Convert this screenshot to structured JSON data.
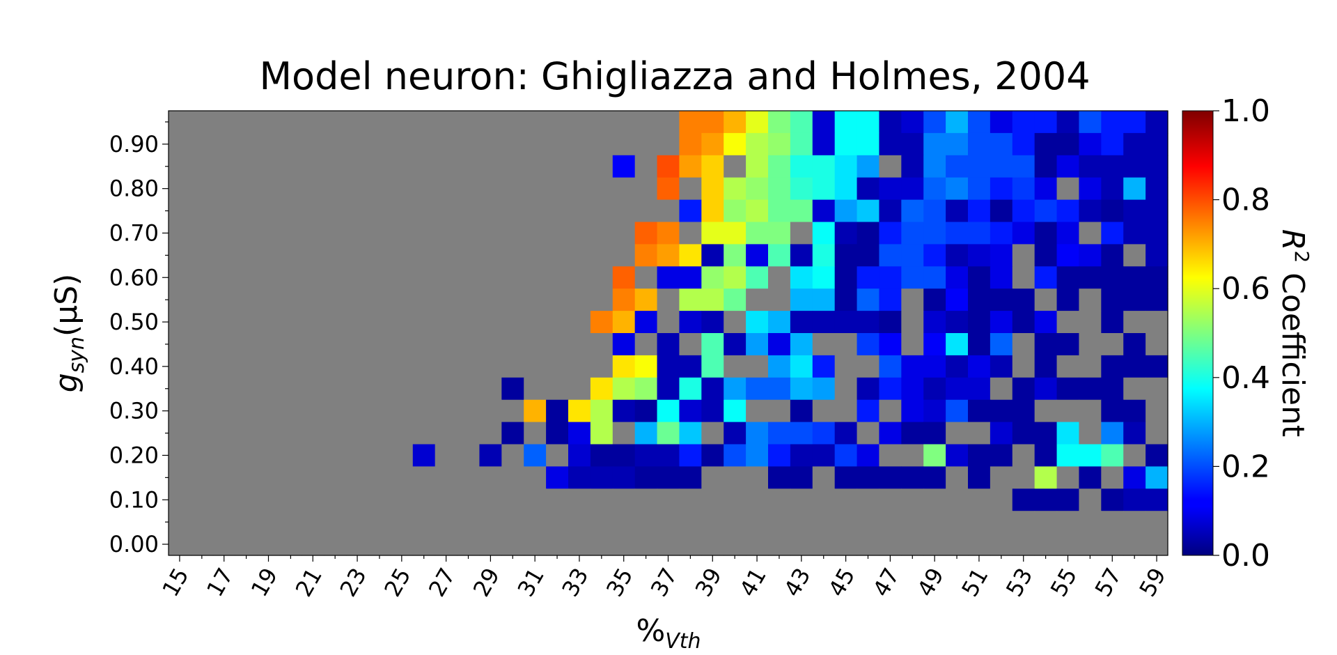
{
  "chart_data": {
    "type": "heatmap",
    "title": "Model neuron: Ghigliazza and Holmes, 2004",
    "xlabel_main": "%",
    "xlabel_sub": "Vth",
    "ylabel_main": "g",
    "ylabel_sub": "syn",
    "ylabel_unit": "(μS)",
    "colorbar_label_base": "R",
    "colorbar_label_sup": "2",
    "colorbar_label_rest": " Coefficient",
    "colormap": "jet",
    "missing_color": "#808080",
    "x_values": [
      15,
      16,
      17,
      18,
      19,
      20,
      21,
      22,
      23,
      24,
      25,
      26,
      27,
      28,
      29,
      30,
      31,
      32,
      33,
      34,
      35,
      36,
      37,
      38,
      39,
      40,
      41,
      42,
      43,
      44,
      45,
      46,
      47,
      48,
      49,
      50,
      51,
      52,
      53,
      54,
      55,
      56,
      57,
      58,
      59
    ],
    "x_tick_labels": [
      "15",
      "17",
      "19",
      "21",
      "23",
      "25",
      "27",
      "29",
      "31",
      "33",
      "35",
      "37",
      "39",
      "41",
      "43",
      "45",
      "47",
      "49",
      "51",
      "53",
      "55",
      "57",
      "59"
    ],
    "y_values": [
      0.0,
      0.05,
      0.1,
      0.15,
      0.2,
      0.25,
      0.3,
      0.35,
      0.4,
      0.45,
      0.5,
      0.55,
      0.6,
      0.65,
      0.7,
      0.75,
      0.8,
      0.85,
      0.9,
      0.95
    ],
    "y_tick_labels": [
      "0.00",
      "0.10",
      "0.20",
      "0.30",
      "0.40",
      "0.50",
      "0.60",
      "0.70",
      "0.80",
      "0.90"
    ],
    "colorbar_range": [
      0.0,
      1.0
    ],
    "colorbar_ticks": [
      "0.0",
      "0.2",
      "0.4",
      "0.6",
      "0.8",
      "1.0"
    ],
    "z_note_rows_top_to_bottom_from_y_0.95_to_0.00_null_is_no_data": "",
    "z": [
      [
        null,
        null,
        null,
        null,
        null,
        null,
        null,
        null,
        null,
        null,
        null,
        null,
        null,
        null,
        null,
        null,
        null,
        null,
        null,
        null,
        null,
        null,
        null,
        0.75,
        0.75,
        0.7,
        0.6,
        0.5,
        0.45,
        0.08,
        0.38,
        0.38,
        0.05,
        0.08,
        0.2,
        0.3,
        0.2,
        0.1,
        0.15,
        0.15,
        0.05,
        0.2,
        0.15,
        0.15,
        0.05
      ],
      [
        null,
        null,
        null,
        null,
        null,
        null,
        null,
        null,
        null,
        null,
        null,
        null,
        null,
        null,
        null,
        null,
        null,
        null,
        null,
        null,
        null,
        null,
        null,
        0.75,
        0.72,
        0.62,
        0.55,
        0.52,
        0.45,
        0.08,
        0.38,
        0.38,
        0.05,
        0.05,
        0.25,
        0.25,
        0.2,
        0.2,
        0.15,
        0.03,
        0.03,
        0.1,
        0.15,
        0.05,
        0.05
      ],
      [
        null,
        null,
        null,
        null,
        null,
        null,
        null,
        null,
        null,
        null,
        null,
        null,
        null,
        null,
        null,
        null,
        null,
        null,
        null,
        null,
        0.12,
        null,
        0.8,
        0.72,
        0.67,
        null,
        0.55,
        0.48,
        0.4,
        0.4,
        0.35,
        0.28,
        null,
        0.05,
        0.25,
        0.2,
        0.2,
        0.2,
        0.2,
        0.03,
        0.1,
        0.05,
        0.05,
        0.05,
        0.05
      ],
      [
        null,
        null,
        null,
        null,
        null,
        null,
        null,
        null,
        null,
        null,
        null,
        null,
        null,
        null,
        null,
        null,
        null,
        null,
        null,
        null,
        null,
        null,
        0.78,
        null,
        0.67,
        0.55,
        0.52,
        0.48,
        0.42,
        0.4,
        0.35,
        0.05,
        0.08,
        0.08,
        0.22,
        0.25,
        0.2,
        0.15,
        0.18,
        0.1,
        null,
        0.1,
        0.05,
        0.3,
        0.05
      ],
      [
        null,
        null,
        null,
        null,
        null,
        null,
        null,
        null,
        null,
        null,
        null,
        null,
        null,
        null,
        null,
        null,
        null,
        null,
        null,
        null,
        null,
        null,
        null,
        0.15,
        0.67,
        0.52,
        0.55,
        0.48,
        0.48,
        0.08,
        0.28,
        0.32,
        0.05,
        0.22,
        0.2,
        0.05,
        0.15,
        0.03,
        0.15,
        0.18,
        0.15,
        0.05,
        0.03,
        0.05,
        0.05
      ],
      [
        null,
        null,
        null,
        null,
        null,
        null,
        null,
        null,
        null,
        null,
        null,
        null,
        null,
        null,
        null,
        null,
        null,
        null,
        null,
        null,
        null,
        0.78,
        0.75,
        null,
        0.6,
        0.6,
        0.5,
        0.5,
        null,
        0.38,
        0.05,
        0.03,
        0.15,
        0.2,
        0.2,
        0.18,
        0.18,
        0.15,
        0.1,
        0.03,
        0.1,
        null,
        0.15,
        0.05,
        0.05
      ],
      [
        null,
        null,
        null,
        null,
        null,
        null,
        null,
        null,
        null,
        null,
        null,
        null,
        null,
        null,
        null,
        null,
        null,
        null,
        null,
        null,
        null,
        0.75,
        0.72,
        0.65,
        0.05,
        0.5,
        0.1,
        0.45,
        0.05,
        0.4,
        0.03,
        0.03,
        0.2,
        0.2,
        0.15,
        0.05,
        0.08,
        0.1,
        null,
        0.03,
        0.12,
        0.1,
        0.03,
        null,
        0.05
      ],
      [
        null,
        null,
        null,
        null,
        null,
        null,
        null,
        null,
        null,
        null,
        null,
        null,
        null,
        null,
        null,
        null,
        null,
        null,
        null,
        null,
        0.78,
        null,
        0.1,
        0.1,
        0.52,
        0.55,
        0.45,
        null,
        0.35,
        0.38,
        0.03,
        0.15,
        0.15,
        0.2,
        0.2,
        0.1,
        0.03,
        0.1,
        null,
        0.15,
        0.03,
        0.03,
        0.03,
        0.03,
        0.03
      ],
      [
        null,
        null,
        null,
        null,
        null,
        null,
        null,
        null,
        null,
        null,
        null,
        null,
        null,
        null,
        null,
        null,
        null,
        null,
        null,
        null,
        0.75,
        0.7,
        null,
        0.55,
        0.55,
        0.48,
        null,
        null,
        0.3,
        0.3,
        0.03,
        0.22,
        0.15,
        null,
        0.03,
        0.12,
        0.03,
        0.03,
        0.03,
        null,
        0.03,
        null,
        0.03,
        0.03,
        0.03
      ],
      [
        null,
        null,
        null,
        null,
        null,
        null,
        null,
        null,
        null,
        null,
        null,
        null,
        null,
        null,
        null,
        null,
        null,
        null,
        null,
        0.75,
        0.7,
        0.1,
        null,
        0.08,
        0.05,
        null,
        0.35,
        0.3,
        0.05,
        0.05,
        0.05,
        0.05,
        0.03,
        null,
        0.08,
        0.05,
        0.03,
        0.1,
        0.03,
        0.1,
        null,
        null,
        0.03,
        null,
        null
      ],
      [
        null,
        null,
        null,
        null,
        null,
        null,
        null,
        null,
        null,
        null,
        null,
        null,
        null,
        null,
        null,
        null,
        null,
        null,
        null,
        null,
        0.1,
        null,
        0.05,
        null,
        0.45,
        0.05,
        0.28,
        0.1,
        0.3,
        null,
        null,
        0.18,
        0.12,
        null,
        0.12,
        0.35,
        0.03,
        0.22,
        null,
        0.03,
        0.03,
        null,
        null,
        0.03,
        null
      ],
      [
        null,
        null,
        null,
        null,
        null,
        null,
        null,
        null,
        null,
        null,
        null,
        null,
        null,
        null,
        null,
        null,
        null,
        null,
        null,
        null,
        0.65,
        0.62,
        0.05,
        0.05,
        0.45,
        null,
        null,
        0.28,
        0.35,
        0.15,
        null,
        null,
        0.2,
        0.1,
        0.1,
        0.05,
        0.1,
        0.05,
        null,
        0.03,
        null,
        null,
        0.03,
        0.03,
        0.03
      ],
      [
        null,
        null,
        null,
        null,
        null,
        null,
        null,
        null,
        null,
        null,
        null,
        null,
        null,
        null,
        null,
        0.03,
        null,
        null,
        null,
        0.65,
        0.55,
        0.52,
        0.05,
        0.4,
        0.05,
        0.28,
        0.22,
        0.22,
        0.3,
        0.28,
        null,
        0.05,
        0.15,
        0.1,
        0.05,
        0.08,
        0.08,
        null,
        0.03,
        0.08,
        0.03,
        0.03,
        0.03,
        null,
        null
      ],
      [
        null,
        null,
        null,
        null,
        null,
        null,
        null,
        null,
        null,
        null,
        null,
        null,
        null,
        null,
        null,
        null,
        0.7,
        0.03,
        0.65,
        0.55,
        0.05,
        0.03,
        0.38,
        0.08,
        0.05,
        0.38,
        null,
        null,
        0.03,
        null,
        null,
        0.15,
        null,
        0.1,
        0.08,
        0.2,
        0.03,
        0.03,
        0.03,
        null,
        null,
        null,
        0.03,
        0.03,
        null
      ],
      [
        null,
        null,
        null,
        null,
        null,
        null,
        null,
        null,
        null,
        null,
        null,
        null,
        null,
        null,
        null,
        0.03,
        null,
        0.03,
        0.1,
        0.55,
        null,
        0.3,
        0.48,
        0.32,
        null,
        0.05,
        0.25,
        0.2,
        0.2,
        0.18,
        0.05,
        null,
        0.1,
        0.03,
        0.03,
        null,
        null,
        0.08,
        0.03,
        0.03,
        0.35,
        null,
        0.25,
        0.05,
        null
      ],
      [
        null,
        null,
        null,
        null,
        null,
        null,
        null,
        null,
        null,
        null,
        null,
        0.08,
        null,
        null,
        0.05,
        null,
        0.22,
        null,
        0.08,
        0.03,
        0.03,
        0.05,
        0.05,
        0.15,
        0.03,
        0.2,
        0.25,
        0.15,
        0.05,
        0.05,
        0.18,
        0.1,
        null,
        null,
        0.5,
        0.08,
        0.03,
        0.03,
        null,
        0.03,
        0.38,
        0.38,
        0.45,
        null,
        0.03
      ],
      [
        null,
        null,
        null,
        null,
        null,
        null,
        null,
        null,
        null,
        null,
        null,
        null,
        null,
        null,
        null,
        null,
        null,
        0.1,
        0.05,
        0.05,
        0.05,
        0.03,
        0.03,
        0.03,
        null,
        null,
        null,
        0.03,
        0.03,
        null,
        0.03,
        0.03,
        0.03,
        0.03,
        0.03,
        null,
        0.03,
        null,
        null,
        0.55,
        null,
        0.03,
        null,
        0.1,
        0.3
      ],
      [
        null,
        null,
        null,
        null,
        null,
        null,
        null,
        null,
        null,
        null,
        null,
        null,
        null,
        null,
        null,
        null,
        null,
        null,
        null,
        null,
        null,
        null,
        null,
        null,
        null,
        null,
        null,
        null,
        null,
        null,
        null,
        null,
        null,
        null,
        null,
        null,
        null,
        null,
        0.03,
        0.03,
        0.03,
        null,
        0.03,
        0.05,
        0.05
      ],
      [
        null,
        null,
        null,
        null,
        null,
        null,
        null,
        null,
        null,
        null,
        null,
        null,
        null,
        null,
        null,
        null,
        null,
        null,
        null,
        null,
        null,
        null,
        null,
        null,
        null,
        null,
        null,
        null,
        null,
        null,
        null,
        null,
        null,
        null,
        null,
        null,
        null,
        null,
        null,
        null,
        null,
        null,
        null,
        null,
        null
      ],
      [
        null,
        null,
        null,
        null,
        null,
        null,
        null,
        null,
        null,
        null,
        null,
        null,
        null,
        null,
        null,
        null,
        null,
        null,
        null,
        null,
        null,
        null,
        null,
        null,
        null,
        null,
        null,
        null,
        null,
        null,
        null,
        null,
        null,
        null,
        null,
        null,
        null,
        null,
        null,
        null,
        null,
        null,
        null,
        null,
        null
      ]
    ]
  }
}
